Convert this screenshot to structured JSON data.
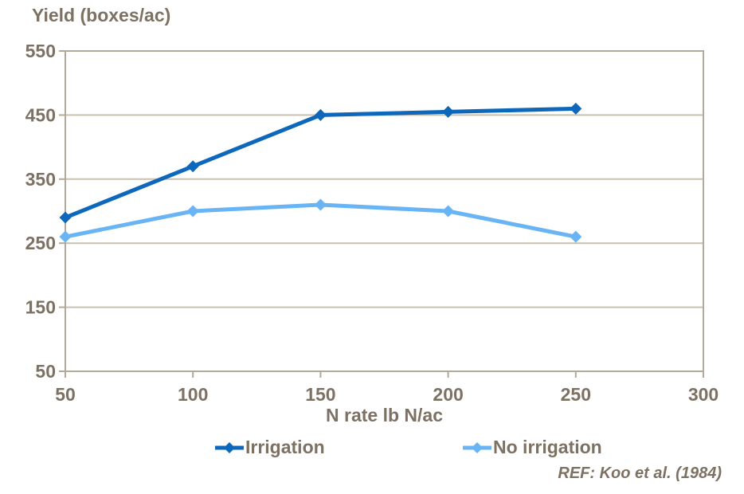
{
  "chart": {
    "title": "Yield (boxes/ac)",
    "x_axis_title": "N rate lb N/ac",
    "reference": "REF: Koo et al. (1984)"
  },
  "colors": {
    "irrigation": "#0d68bc",
    "no_irrigation": "#69b4f5",
    "text": "#7d7163",
    "gridline": "#c9c0b0",
    "axis": "#b3a999",
    "background": "#ffffff"
  },
  "chart_data": {
    "type": "line",
    "title": "Yield (boxes/ac)",
    "xlabel": "N rate lb N/ac",
    "ylabel": "Yield (boxes/ac)",
    "x": [
      50,
      100,
      150,
      200,
      250
    ],
    "series": [
      {
        "name": "Irrigation",
        "color": "#0d68bc",
        "values": [
          290,
          370,
          450,
          455,
          460
        ]
      },
      {
        "name": "No irrigation",
        "color": "#69b4f5",
        "values": [
          260,
          300,
          310,
          300,
          260
        ]
      }
    ],
    "xlim": [
      50,
      300
    ],
    "ylim": [
      50,
      550
    ],
    "x_ticks": [
      50,
      100,
      150,
      200,
      250,
      300
    ],
    "y_ticks": [
      50,
      150,
      250,
      350,
      450,
      550
    ],
    "grid": "horizontal-only",
    "marker": "diamond",
    "legend_position": "bottom",
    "annotation": "REF: Koo et al. (1984)"
  }
}
